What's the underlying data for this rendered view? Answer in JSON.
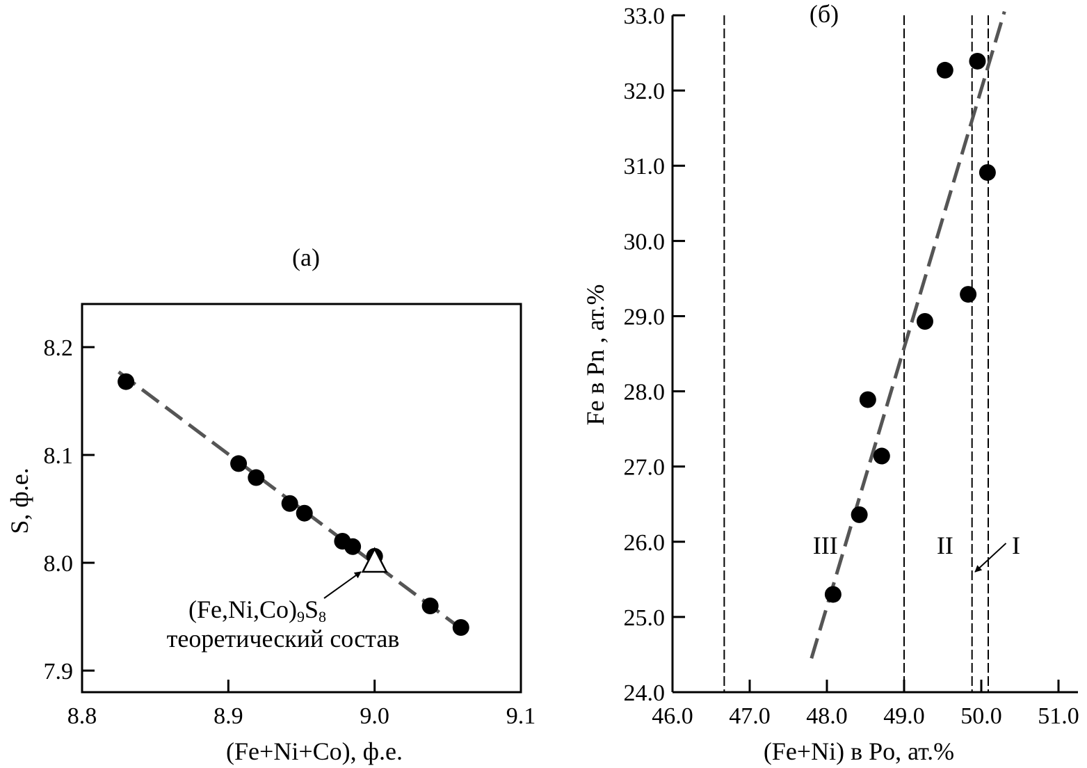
{
  "chart_data": [
    {
      "type": "scatter",
      "panel_label": "(а)",
      "title": "",
      "xlabel": "(Fe+Ni+Co), ф.е.",
      "ylabel": "S, ф.е.",
      "xlim": [
        8.8,
        9.1
      ],
      "ylim": [
        7.88,
        8.24
      ],
      "x_ticks": [
        8.8,
        8.9,
        9.0,
        9.1
      ],
      "x_tick_labels": [
        "8.8",
        "8.9",
        "9.0",
        "9.1"
      ],
      "y_ticks": [
        7.9,
        8.0,
        8.1,
        8.2
      ],
      "y_tick_labels": [
        "7.9",
        "8.0",
        "8.1",
        "8.2"
      ],
      "grid": false,
      "points": [
        {
          "x": 8.83,
          "y": 8.168
        },
        {
          "x": 8.907,
          "y": 8.092
        },
        {
          "x": 8.919,
          "y": 8.079
        },
        {
          "x": 8.942,
          "y": 8.055
        },
        {
          "x": 8.952,
          "y": 8.046
        },
        {
          "x": 8.978,
          "y": 8.02
        },
        {
          "x": 8.985,
          "y": 8.015
        },
        {
          "x": 9.0,
          "y": 8.006
        },
        {
          "x": 9.038,
          "y": 7.96
        },
        {
          "x": 9.059,
          "y": 7.94
        }
      ],
      "trend_line": {
        "x": [
          8.825,
          9.058
        ],
        "y": [
          8.177,
          7.94
        ],
        "style": "dashed",
        "color": "#555555"
      },
      "theoretical_point": {
        "x": 9.0,
        "y": 8.0,
        "marker": "triangle"
      },
      "annotation": {
        "formula_prefix": "(Fe,Ni,Co)",
        "formula_sub1": "9",
        "formula_mid": "S",
        "formula_sub2": "8",
        "line2": "теоретический состав"
      }
    },
    {
      "type": "scatter",
      "panel_label": "(б)",
      "title": "",
      "xlabel": "(Fe+Ni) в Po, ат.%",
      "ylabel": "Fe в Pn , ат.%",
      "xlim": [
        46.0,
        51.0
      ],
      "ylim": [
        24.0,
        33.0
      ],
      "x_ticks": [
        46.0,
        47.0,
        48.0,
        49.0,
        50.0,
        51.0
      ],
      "x_tick_labels": [
        "46.0",
        "47.0",
        "48.0",
        "49.0",
        "50.0",
        "51.0"
      ],
      "y_ticks": [
        24.0,
        25.0,
        26.0,
        27.0,
        28.0,
        29.0,
        30.0,
        31.0,
        32.0,
        33.0
      ],
      "y_tick_labels": [
        "24.0",
        "25.0",
        "26.0",
        "27.0",
        "28.0",
        "29.0",
        "30.0",
        "31.0",
        "32.0",
        "33.0"
      ],
      "grid": false,
      "points": [
        {
          "x": 48.08,
          "y": 25.3
        },
        {
          "x": 48.42,
          "y": 26.36
        },
        {
          "x": 48.53,
          "y": 27.89
        },
        {
          "x": 48.71,
          "y": 27.14
        },
        {
          "x": 49.27,
          "y": 28.93
        },
        {
          "x": 49.53,
          "y": 32.27
        },
        {
          "x": 49.83,
          "y": 29.29
        },
        {
          "x": 49.95,
          "y": 32.39
        },
        {
          "x": 50.08,
          "y": 30.91
        }
      ],
      "trend_line": {
        "x": [
          47.8,
          50.3
        ],
        "y": [
          24.45,
          33.05
        ],
        "style": "dashed",
        "color": "#555555"
      },
      "vertical_lines": [
        46.67,
        49.0,
        49.88,
        50.09
      ],
      "regions": [
        {
          "label": "III",
          "x": 47.98,
          "y": 25.95
        },
        {
          "label": "II",
          "x": 49.53,
          "y": 25.95
        },
        {
          "label": "I",
          "x": 50.45,
          "y": 25.95
        }
      ],
      "arrow_I": {
        "from": [
          50.32,
          25.98
        ],
        "to": [
          49.92,
          25.6
        ]
      }
    }
  ]
}
